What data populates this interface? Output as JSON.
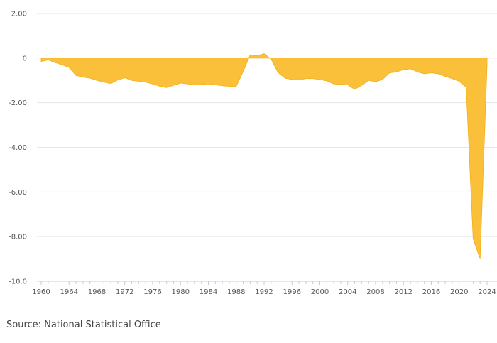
{
  "source": "Source: National Statistical Office",
  "colors": {
    "area": "#fbc03a",
    "stroke": "#f4ae18",
    "grid": "#e6e6e6",
    "axis": "#bcd0e0",
    "label": "#555555"
  },
  "chart_data": {
    "type": "area",
    "title": "",
    "xlabel": "",
    "ylabel": "",
    "xlim": [
      1960,
      2024
    ],
    "ylim": [
      -10,
      2
    ],
    "grid": true,
    "y_ticks": [
      {
        "value": 2,
        "label": "2.00"
      },
      {
        "value": 0,
        "label": "0"
      },
      {
        "value": -2,
        "label": "-2.00"
      },
      {
        "value": -4,
        "label": "-4.00"
      },
      {
        "value": -6,
        "label": "-6.00"
      },
      {
        "value": -8,
        "label": "-8.00"
      },
      {
        "value": -10,
        "label": "-10.0"
      }
    ],
    "x_ticks": [
      {
        "value": 1960,
        "label": "1960"
      },
      {
        "value": 1964,
        "label": "1964"
      },
      {
        "value": 1968,
        "label": "1968"
      },
      {
        "value": 1972,
        "label": "1972"
      },
      {
        "value": 1976,
        "label": "1976"
      },
      {
        "value": 1980,
        "label": "1980"
      },
      {
        "value": 1984,
        "label": "1984"
      },
      {
        "value": 1988,
        "label": "1988"
      },
      {
        "value": 1992,
        "label": "1992"
      },
      {
        "value": 1996,
        "label": "1996"
      },
      {
        "value": 2000,
        "label": "2000"
      },
      {
        "value": 2004,
        "label": "2004"
      },
      {
        "value": 2008,
        "label": "2008"
      },
      {
        "value": 2012,
        "label": "2012"
      },
      {
        "value": 2016,
        "label": "2016"
      },
      {
        "value": 2020,
        "label": "2020"
      },
      {
        "value": 2024,
        "label": "2024"
      }
    ],
    "series": [
      {
        "x": [
          1960,
          1961,
          1962,
          1963,
          1964,
          1965,
          1966,
          1967,
          1968,
          1969,
          1970,
          1971,
          1972,
          1973,
          1974,
          1975,
          1976,
          1977,
          1978,
          1979,
          1980,
          1981,
          1982,
          1983,
          1984,
          1985,
          1986,
          1987,
          1988,
          1989,
          1990,
          1991,
          1992,
          1993,
          1994,
          1995,
          1996,
          1997,
          1998,
          1999,
          2000,
          2001,
          2002,
          2003,
          2004,
          2005,
          2006,
          2007,
          2008,
          2009,
          2010,
          2011,
          2012,
          2013,
          2014,
          2015,
          2016,
          2017,
          2018,
          2019,
          2020,
          2021,
          2022,
          2023,
          2024
        ],
        "y": [
          -0.15,
          -0.08,
          -0.2,
          -0.3,
          -0.42,
          -0.78,
          -0.85,
          -0.9,
          -1.0,
          -1.08,
          -1.14,
          -0.98,
          -0.88,
          -1.0,
          -1.04,
          -1.08,
          -1.16,
          -1.26,
          -1.32,
          -1.22,
          -1.12,
          -1.16,
          -1.2,
          -1.18,
          -1.16,
          -1.2,
          -1.24,
          -1.26,
          -1.26,
          -0.6,
          0.15,
          0.1,
          0.2,
          -0.05,
          -0.65,
          -0.9,
          -0.96,
          -0.98,
          -0.92,
          -0.92,
          -0.96,
          -1.02,
          -1.16,
          -1.18,
          -1.2,
          -1.4,
          -1.22,
          -1.0,
          -1.06,
          -0.96,
          -0.66,
          -0.62,
          -0.52,
          -0.48,
          -0.62,
          -0.7,
          -0.66,
          -0.7,
          -0.82,
          -0.92,
          -1.04,
          -1.3,
          -8.1,
          -9.0,
          -0.3
        ]
      }
    ]
  }
}
